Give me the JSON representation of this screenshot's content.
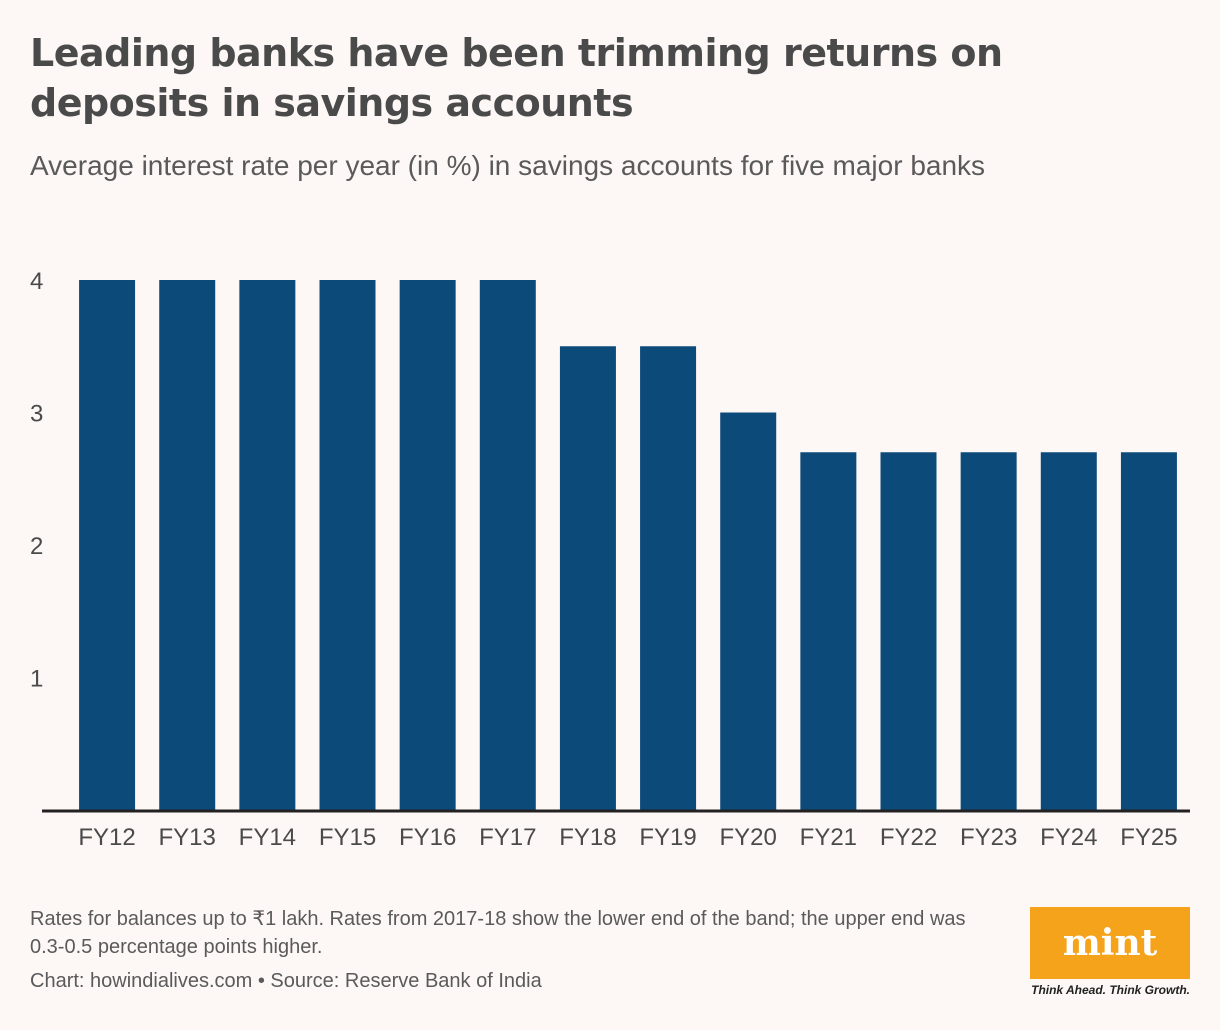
{
  "title": "Leading banks have been trimming returns on deposits in savings accounts",
  "subtitle": "Average interest rate per year (in %) in savings accounts for five major banks",
  "footnote": "Rates for balances up to ₹1 lakh. Rates from 2017-18 show the lower end of the band; the upper end was 0.3-0.5 percentage points higher.",
  "credit": "Chart: howindialives.com • Source: Reserve Bank of India",
  "logo": {
    "text": "mint",
    "tagline": "Think Ahead. Think Growth."
  },
  "colors": {
    "bar": "#0c4a7a",
    "axis": "#222222",
    "text": "#4a4a4a",
    "background": "#fdf8f6",
    "logo_bg": "#f5a31a"
  },
  "chart_data": {
    "type": "bar",
    "title": "",
    "xlabel": "",
    "ylabel": "",
    "categories": [
      "FY12",
      "FY13",
      "FY14",
      "FY15",
      "FY16",
      "FY17",
      "FY18",
      "FY19",
      "FY20",
      "FY21",
      "FY22",
      "FY23",
      "FY24",
      "FY25"
    ],
    "values": [
      4,
      4,
      4,
      4,
      4,
      4,
      3.5,
      3.5,
      3,
      2.7,
      2.7,
      2.7,
      2.7,
      2.7
    ],
    "yticks": [
      1,
      2,
      3,
      4
    ],
    "ylim": [
      0,
      4
    ],
    "grid": false
  }
}
